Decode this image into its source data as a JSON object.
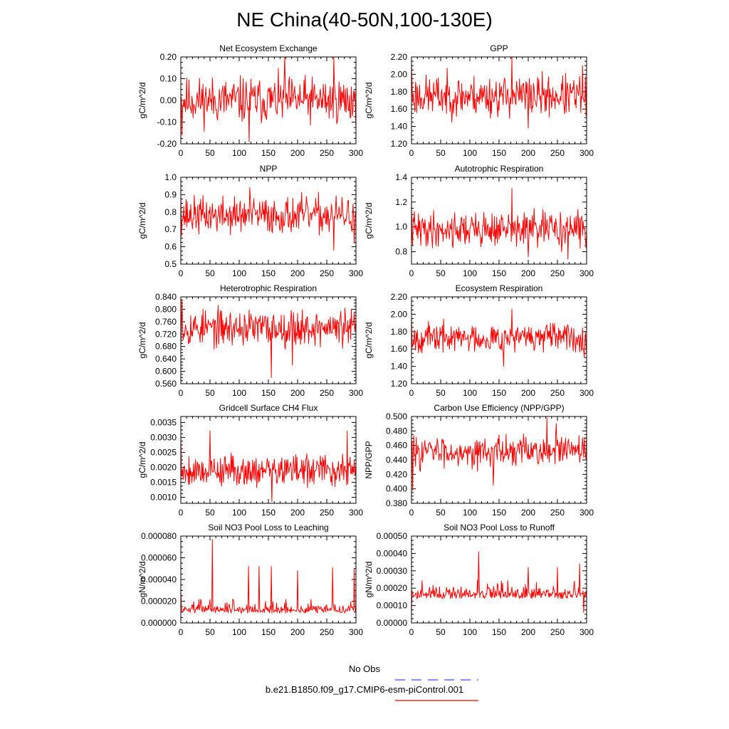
{
  "page": {
    "title": "NE China(40-50N,100-130E)"
  },
  "legend": {
    "entries": [
      {
        "label": "No Obs",
        "color": "#4444ff",
        "style": "dashed"
      },
      {
        "label": "b.e21.B1850.f09_g17.CMIP6-esm-piControl.001",
        "color": "#ff0000",
        "style": "solid"
      }
    ]
  },
  "chart_data": [
    {
      "type": "line",
      "title": "Net Ecosystem Exchange",
      "ylabel": "gC/m^2/d",
      "xlim": [
        0,
        300
      ],
      "ylim": [
        -0.2,
        0.2
      ],
      "xticks": [
        "0",
        "50",
        "100",
        "150",
        "200",
        "250",
        "300"
      ],
      "yticks": [
        "-0.20",
        "-0.10",
        "0.00",
        "0.10",
        "0.20"
      ],
      "ytick_values": [
        -0.2,
        -0.1,
        0.0,
        0.1,
        0.2
      ],
      "series": [
        {
          "color": "#ff0000",
          "gen": {
            "n": 300,
            "base": 0.0,
            "amp": 0.09,
            "seed": 11,
            "spikes": [
              [
                178,
                0.2
              ],
              [
                262,
                0.2
              ],
              [
                117,
                -0.19
              ],
              [
                2,
                -0.16
              ]
            ]
          }
        }
      ]
    },
    {
      "type": "line",
      "title": "GPP",
      "ylabel": "gC/m^2/d",
      "xlim": [
        0,
        300
      ],
      "ylim": [
        1.2,
        2.2
      ],
      "xticks": [
        "0",
        "50",
        "100",
        "150",
        "200",
        "250",
        "300"
      ],
      "yticks": [
        "1.20",
        "1.40",
        "1.60",
        "1.80",
        "2.00",
        "2.20"
      ],
      "ytick_values": [
        1.2,
        1.4,
        1.6,
        1.8,
        2.0,
        2.2
      ],
      "series": [
        {
          "color": "#ff0000",
          "gen": {
            "n": 300,
            "base": 1.75,
            "amp": 0.2,
            "seed": 23,
            "spikes": [
              [
                172,
                2.2
              ],
              [
                293,
                2.1
              ],
              [
                0,
                2.12
              ],
              [
                200,
                1.38
              ]
            ]
          }
        }
      ]
    },
    {
      "type": "line",
      "title": "NPP",
      "ylabel": "gC/m^2/d",
      "xlim": [
        0,
        300
      ],
      "ylim": [
        0.5,
        1.0
      ],
      "xticks": [
        "0",
        "50",
        "100",
        "150",
        "200",
        "250",
        "300"
      ],
      "yticks": [
        "0.5",
        "0.6",
        "0.7",
        "0.8",
        "0.9",
        "1.0"
      ],
      "ytick_values": [
        0.5,
        0.6,
        0.7,
        0.8,
        0.9,
        1.0
      ],
      "series": [
        {
          "color": "#ff0000",
          "gen": {
            "n": 300,
            "base": 0.78,
            "amp": 0.09,
            "seed": 37,
            "spikes": [
              [
                118,
                0.94
              ],
              [
                0,
                0.92
              ],
              [
                262,
                0.58
              ],
              [
                297,
                0.62
              ]
            ]
          }
        }
      ]
    },
    {
      "type": "line",
      "title": "Autotrophic Respiration",
      "ylabel": "gC/m^2/d",
      "xlim": [
        0,
        300
      ],
      "ylim": [
        0.7,
        1.4
      ],
      "xticks": [
        "0",
        "50",
        "100",
        "150",
        "200",
        "250",
        "300"
      ],
      "yticks": [
        "0.8",
        "1.0",
        "1.2",
        "1.4"
      ],
      "ytick_values": [
        0.8,
        1.0,
        1.2,
        1.4
      ],
      "series": [
        {
          "color": "#ff0000",
          "gen": {
            "n": 300,
            "base": 0.98,
            "amp": 0.12,
            "seed": 41,
            "spikes": [
              [
                172,
                1.31
              ],
              [
                0,
                1.2
              ],
              [
                268,
                0.74
              ],
              [
                200,
                0.76
              ]
            ]
          }
        }
      ]
    },
    {
      "type": "line",
      "title": "Heterotrophic Respiration",
      "ylabel": "gC/m^2/d",
      "xlim": [
        0,
        300
      ],
      "ylim": [
        0.56,
        0.84
      ],
      "xticks": [
        "0",
        "50",
        "100",
        "150",
        "200",
        "250",
        "300"
      ],
      "yticks": [
        "0.560",
        "0.600",
        "0.640",
        "0.680",
        "0.720",
        "0.760",
        "0.800",
        "0.840"
      ],
      "ytick_values": [
        0.56,
        0.6,
        0.64,
        0.68,
        0.72,
        0.76,
        0.8,
        0.84
      ],
      "series": [
        {
          "color": "#ff0000",
          "gen": {
            "n": 300,
            "base": 0.74,
            "amp": 0.05,
            "seed": 53,
            "spikes": [
              [
                155,
                0.58
              ],
              [
                2,
                0.83
              ],
              [
                191,
                0.62
              ],
              [
                300,
                0.72
              ]
            ]
          }
        }
      ]
    },
    {
      "type": "line",
      "title": "Ecosystem Respiration",
      "ylabel": "gC/m^2/d",
      "xlim": [
        0,
        300
      ],
      "ylim": [
        1.2,
        2.2
      ],
      "xticks": [
        "0",
        "50",
        "100",
        "150",
        "200",
        "250",
        "300"
      ],
      "yticks": [
        "1.20",
        "1.40",
        "1.60",
        "1.80",
        "2.00",
        "2.20"
      ],
      "ytick_values": [
        1.2,
        1.4,
        1.6,
        1.8,
        2.0,
        2.2
      ],
      "series": [
        {
          "color": "#ff0000",
          "gen": {
            "n": 300,
            "base": 1.73,
            "amp": 0.14,
            "seed": 67,
            "spikes": [
              [
                172,
                2.06
              ],
              [
                158,
                1.4
              ],
              [
                0,
                1.98
              ],
              [
                300,
                1.55
              ]
            ]
          }
        }
      ]
    },
    {
      "type": "line",
      "title": "Gridcell Surface CH4 Flux",
      "ylabel": "gC/m^2/d",
      "xlim": [
        0,
        300
      ],
      "ylim": [
        0.0008,
        0.0037
      ],
      "xticks": [
        "0",
        "50",
        "100",
        "150",
        "200",
        "250",
        "300"
      ],
      "yticks": [
        "0.0010",
        "0.0015",
        "0.0020",
        "0.0025",
        "0.0030",
        "0.0035"
      ],
      "ytick_values": [
        0.001,
        0.0015,
        0.002,
        0.0025,
        0.003,
        0.0035
      ],
      "series": [
        {
          "color": "#ff0000",
          "gen": {
            "n": 300,
            "base": 0.0019,
            "amp": 0.00045,
            "seed": 79,
            "spikes": [
              [
                285,
                0.00322
              ],
              [
                50,
                0.00322
              ],
              [
                156,
                0.00086
              ],
              [
                0,
                0.0031
              ]
            ]
          }
        }
      ]
    },
    {
      "type": "line",
      "title": "Carbon Use Efficiency (NPP/GPP)",
      "ylabel": "NPP/GPP",
      "xlim": [
        0,
        300
      ],
      "ylim": [
        0.38,
        0.5
      ],
      "xticks": [
        "0",
        "50",
        "100",
        "150",
        "200",
        "250",
        "300"
      ],
      "yticks": [
        "0.380",
        "0.400",
        "0.420",
        "0.440",
        "0.460",
        "0.480",
        "0.500"
      ],
      "ytick_values": [
        0.38,
        0.4,
        0.42,
        0.44,
        0.46,
        0.48,
        0.5
      ],
      "series": [
        {
          "color": "#ff0000",
          "gen": {
            "n": 300,
            "base": 0.452,
            "amp": 0.018,
            "seed": 83,
            "spikes": [
              [
                232,
                0.498
              ],
              [
                2,
                0.398
              ],
              [
                140,
                0.405
              ],
              [
                248,
                0.49
              ]
            ]
          }
        }
      ]
    },
    {
      "type": "line",
      "title": "Soil NO3 Pool Loss to Leaching",
      "ylabel": "gN/m^2/d",
      "xlim": [
        0,
        300
      ],
      "ylim": [
        0.0,
        8e-05
      ],
      "xticks": [
        "0",
        "50",
        "100",
        "150",
        "200",
        "250",
        "300"
      ],
      "yticks": [
        "0.000000",
        "0.000020",
        "0.000040",
        "0.000060",
        "0.000080"
      ],
      "ytick_values": [
        0.0,
        2e-05,
        4e-05,
        6e-05,
        8e-05
      ],
      "series": [
        {
          "color": "#ff0000",
          "gen": {
            "n": 300,
            "base": 9e-06,
            "amp": 6e-06,
            "seed": 97,
            "positive": true,
            "spikes": [
              [
                54,
                7.7e-05
              ],
              [
                116,
                5.2e-05
              ],
              [
                134,
                5.2e-05
              ],
              [
                155,
                5.2e-05
              ],
              [
                260,
                5.1e-05
              ],
              [
                297,
                5e-05
              ],
              [
                200,
                4.8e-05
              ],
              [
                0,
                3e-05
              ]
            ]
          }
        }
      ]
    },
    {
      "type": "line",
      "title": "Soil NO3 Pool Loss to Runoff",
      "ylabel": "gN/m^2/d",
      "xlim": [
        0,
        300
      ],
      "ylim": [
        0.0,
        0.0005
      ],
      "xticks": [
        "0",
        "50",
        "100",
        "150",
        "200",
        "250",
        "300"
      ],
      "yticks": [
        "0.00000",
        "0.00010",
        "0.00020",
        "0.00030",
        "0.00040",
        "0.00050"
      ],
      "ytick_values": [
        0.0,
        0.0001,
        0.0002,
        0.0003,
        0.0004,
        0.0005
      ],
      "series": [
        {
          "color": "#ff0000",
          "gen": {
            "n": 300,
            "base": 0.00014,
            "amp": 5e-05,
            "seed": 101,
            "positive": true,
            "spikes": [
              [
                115,
                0.00041
              ],
              [
                288,
                0.00034
              ],
              [
                200,
                0.00032
              ],
              [
                250,
                0.00032
              ],
              [
                0,
                6e-05
              ],
              [
                295,
                6e-05
              ]
            ]
          }
        }
      ]
    }
  ]
}
